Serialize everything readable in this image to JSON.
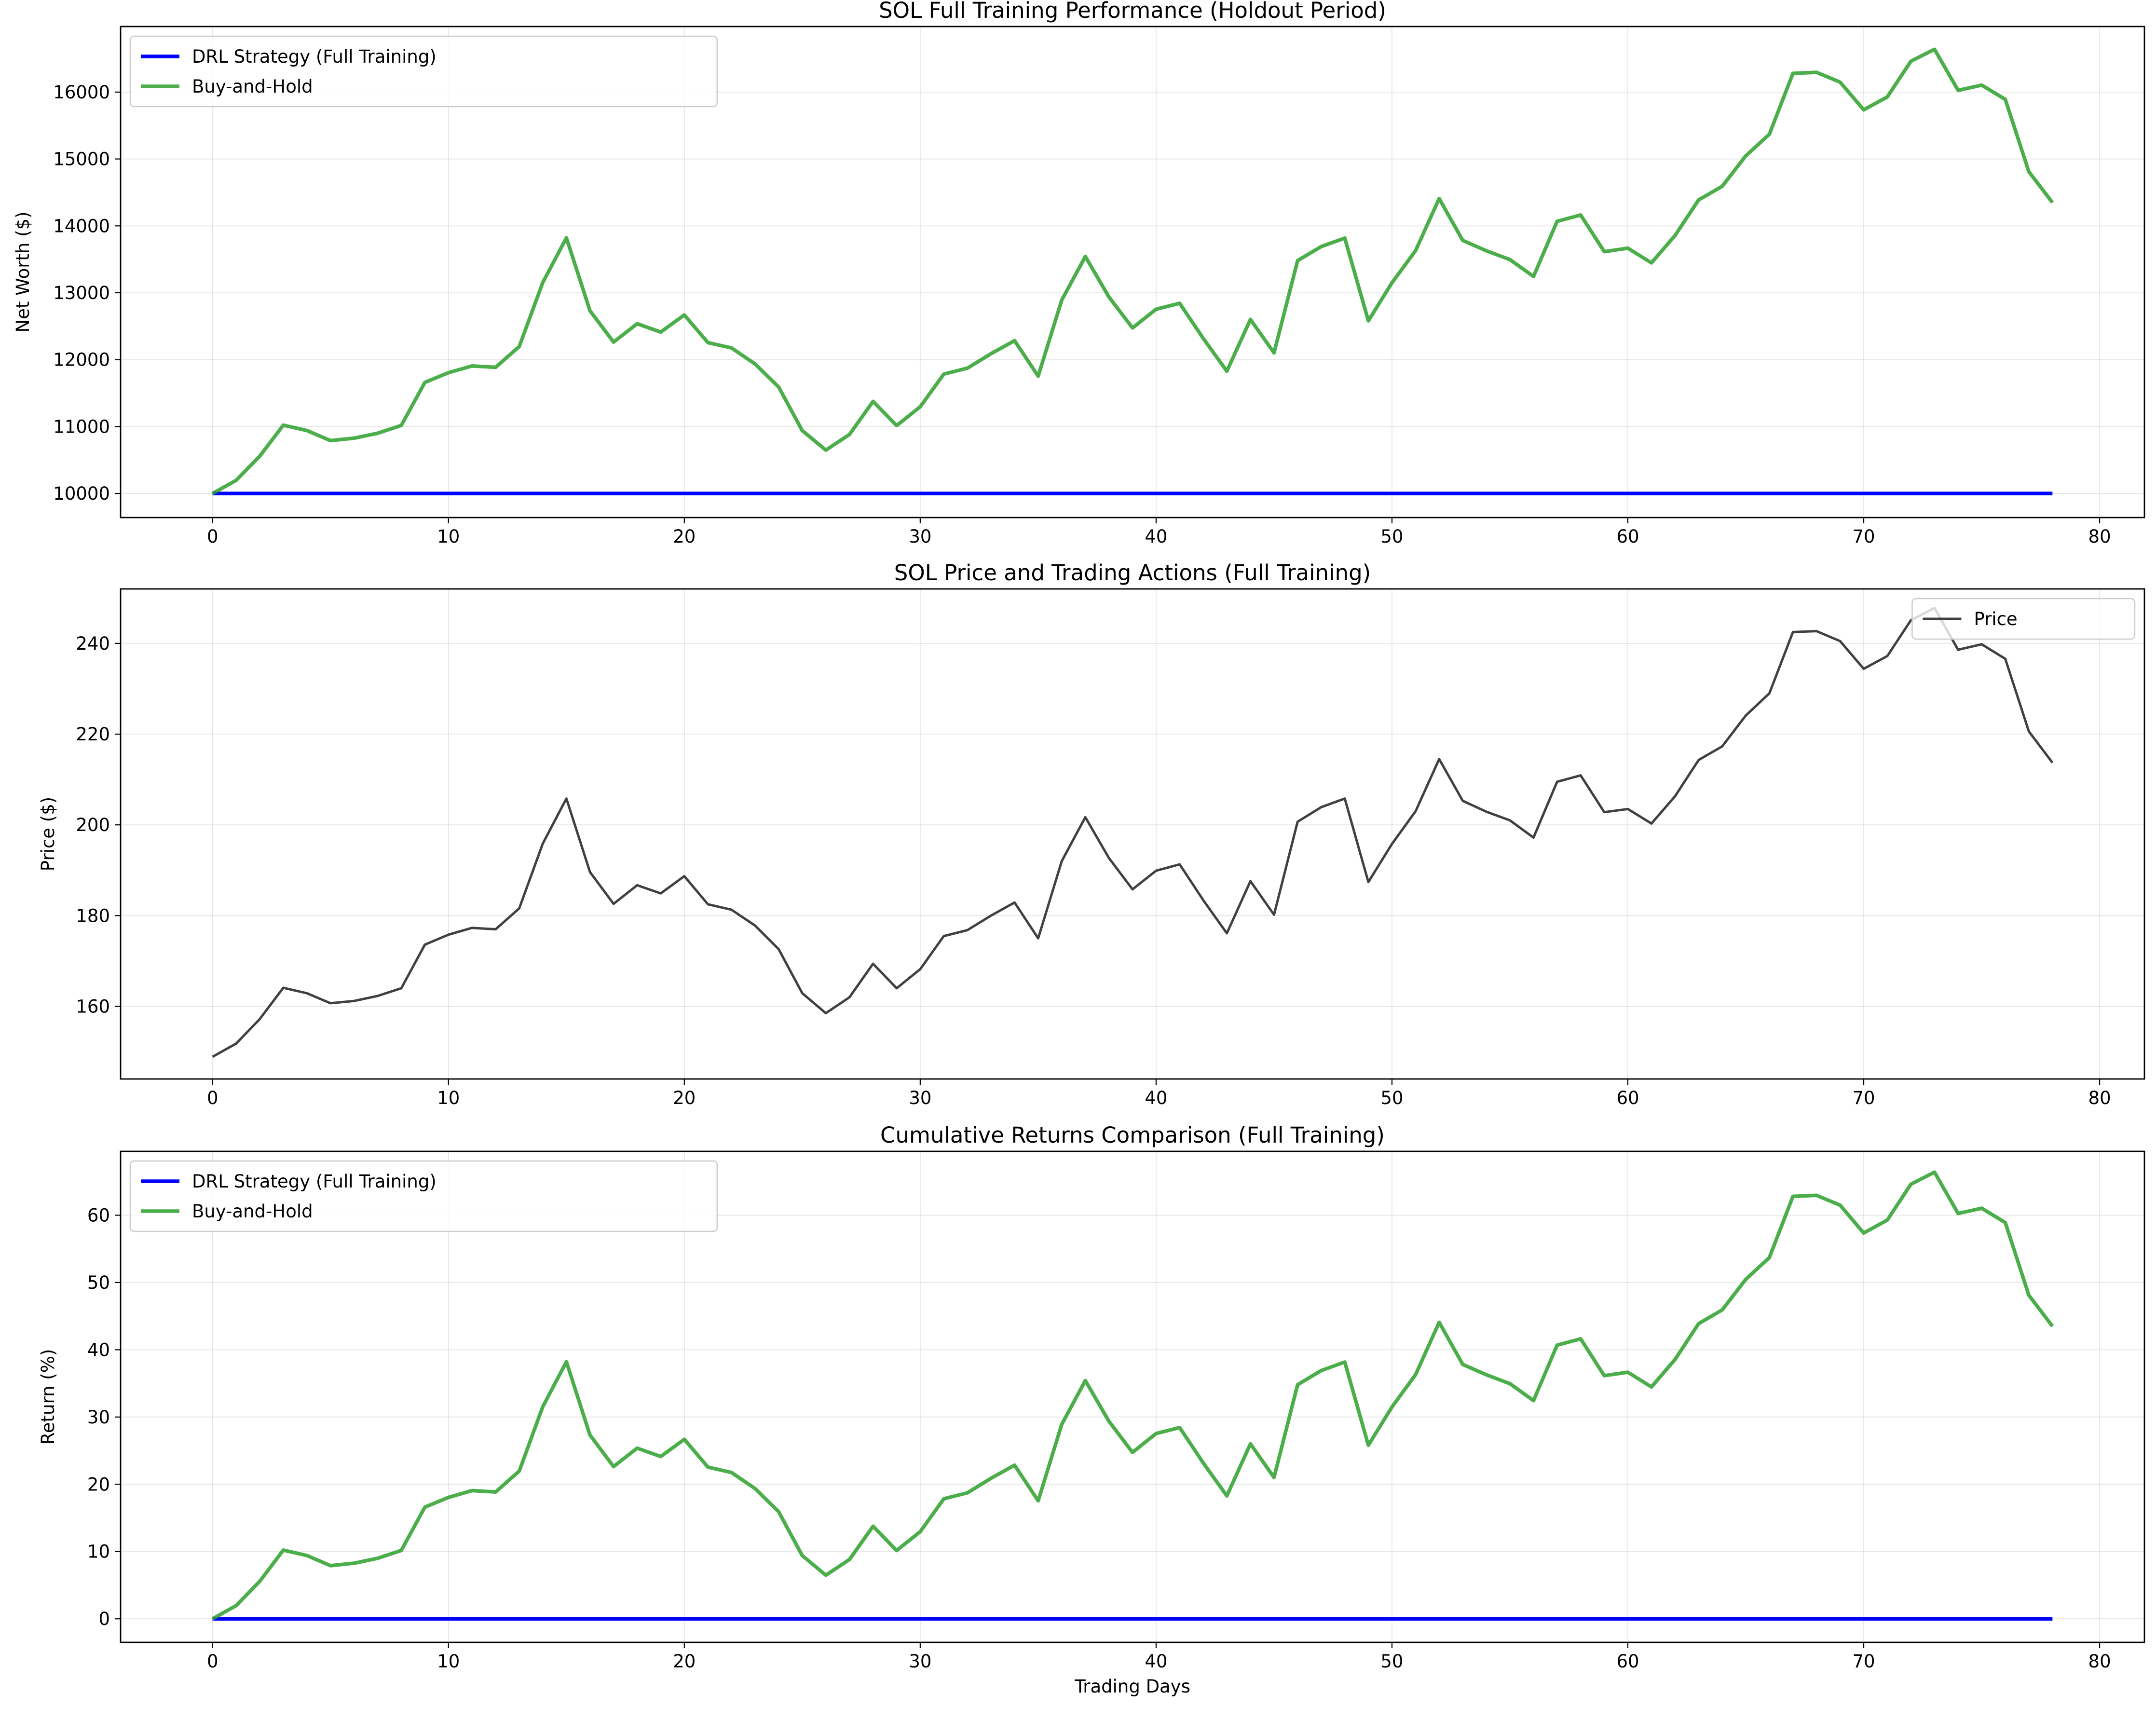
{
  "chart_data": [
    {
      "type": "line",
      "title": "SOL Full Training Performance (Holdout Period)",
      "xlabel": "",
      "ylabel": "Net Worth ($)",
      "xlim": [
        -3.9,
        81.9
      ],
      "ylim": [
        9640,
        16980
      ],
      "xticks": [
        0,
        10,
        20,
        30,
        40,
        50,
        60,
        70,
        80
      ],
      "yticks": [
        10000,
        11000,
        12000,
        13000,
        14000,
        15000,
        16000
      ],
      "grid": true,
      "legend_position": "top-left",
      "series": [
        {
          "name": "DRL Strategy (Full Training)",
          "color": "#0000ff",
          "values": [
            10000,
            10000,
            10000,
            10000,
            10000,
            10000,
            10000,
            10000,
            10000,
            10000,
            10000,
            10000,
            10000,
            10000,
            10000,
            10000,
            10000,
            10000,
            10000,
            10000,
            10000,
            10000,
            10000,
            10000,
            10000,
            10000,
            10000,
            10000,
            10000,
            10000,
            10000,
            10000,
            10000,
            10000,
            10000,
            10000,
            10000,
            10000,
            10000,
            10000,
            10000,
            10000,
            10000,
            10000,
            10000,
            10000,
            10000,
            10000,
            10000,
            10000,
            10000,
            10000,
            10000,
            10000,
            10000,
            10000,
            10000,
            10000,
            10000,
            10000,
            10000,
            10000,
            10000,
            10000,
            10000,
            10000,
            10000,
            10000,
            10000,
            10000,
            10000,
            10000,
            10000,
            10000,
            10000,
            10000,
            10000,
            10000,
            10000
          ]
        },
        {
          "name": "Buy-and-Hold",
          "color": "#2ca02c",
          "values": [
            10000,
            10196,
            10557,
            11021,
            10941,
            10790,
            10827,
            10900,
            11017,
            11660,
            11805,
            11906,
            11886,
            12196,
            13155,
            13821,
            12731,
            12263,
            12537,
            12413,
            12668,
            12255,
            12175,
            11936,
            11591,
            10940,
            10648,
            10881,
            11376,
            11015,
            11296,
            11784,
            11873,
            12089,
            12284,
            11754,
            12891,
            13542,
            12937,
            12474,
            12754,
            12843,
            12317,
            11828,
            12601,
            12102,
            13480,
            13691,
            13817,
            12581,
            13149,
            13630,
            14408,
            13782,
            13628,
            13496,
            13244,
            14068,
            14162,
            13615,
            13666,
            13447,
            13856,
            14388,
            14592,
            15047,
            15371,
            16280,
            16295,
            16149,
            15735,
            15928,
            16461,
            16640,
            16026,
            16104,
            15891,
            14810,
            14349
          ]
        }
      ]
    },
    {
      "type": "line",
      "title": "SOL Price and Trading Actions (Full Training)",
      "xlabel": "",
      "ylabel": "Price ($)",
      "xlim": [
        -3.9,
        81.9
      ],
      "ylim": [
        144,
        252
      ],
      "xticks": [
        0,
        10,
        20,
        30,
        40,
        50,
        60,
        70,
        80
      ],
      "yticks": [
        160,
        180,
        200,
        220,
        240
      ],
      "grid": true,
      "legend_position": "top-right",
      "series": [
        {
          "name": "Price",
          "color": "#404040",
          "values": [
            148.9,
            151.8,
            157.2,
            164.1,
            162.9,
            160.7,
            161.2,
            162.3,
            164.0,
            173.6,
            175.8,
            177.3,
            177.0,
            181.6,
            195.9,
            205.8,
            189.6,
            182.6,
            186.7,
            184.9,
            188.7,
            182.5,
            181.3,
            177.8,
            172.6,
            162.9,
            158.5,
            162.0,
            169.4,
            164.0,
            168.2,
            175.5,
            176.8,
            180.0,
            182.9,
            175.0,
            192.0,
            201.7,
            192.7,
            185.8,
            189.9,
            191.3,
            183.4,
            176.1,
            187.6,
            180.2,
            200.7,
            203.9,
            205.8,
            187.4,
            195.8,
            203.0,
            214.5,
            205.3,
            202.9,
            201.0,
            197.2,
            209.5,
            210.9,
            202.8,
            203.5,
            200.3,
            206.3,
            214.3,
            217.3,
            224.1,
            229.0,
            242.5,
            242.7,
            240.5,
            234.4,
            237.2,
            245.1,
            247.8,
            238.6,
            239.8,
            236.6,
            220.6,
            213.7
          ]
        }
      ]
    },
    {
      "type": "line",
      "title": "Cumulative Returns Comparison (Full Training)",
      "xlabel": "Trading Days",
      "ylabel": "Return (%)",
      "xlim": [
        -3.9,
        81.9
      ],
      "ylim": [
        -3.5,
        69.5
      ],
      "xticks": [
        0,
        10,
        20,
        30,
        40,
        50,
        60,
        70,
        80
      ],
      "yticks": [
        0,
        10,
        20,
        30,
        40,
        50,
        60
      ],
      "grid": true,
      "legend_position": "top-left",
      "series": [
        {
          "name": "DRL Strategy (Full Training)",
          "color": "#0000ff",
          "values": [
            0,
            0,
            0,
            0,
            0,
            0,
            0,
            0,
            0,
            0,
            0,
            0,
            0,
            0,
            0,
            0,
            0,
            0,
            0,
            0,
            0,
            0,
            0,
            0,
            0,
            0,
            0,
            0,
            0,
            0,
            0,
            0,
            0,
            0,
            0,
            0,
            0,
            0,
            0,
            0,
            0,
            0,
            0,
            0,
            0,
            0,
            0,
            0,
            0,
            0,
            0,
            0,
            0,
            0,
            0,
            0,
            0,
            0,
            0,
            0,
            0,
            0,
            0,
            0,
            0,
            0,
            0,
            0,
            0,
            0,
            0,
            0,
            0,
            0,
            0,
            0,
            0,
            0,
            0
          ]
        },
        {
          "name": "Buy-and-Hold",
          "color": "#2ca02c",
          "values": [
            0,
            1.96,
            5.57,
            10.21,
            9.41,
            7.9,
            8.27,
            9.0,
            10.17,
            16.6,
            18.05,
            19.06,
            18.86,
            21.96,
            31.55,
            38.21,
            27.31,
            22.63,
            25.37,
            24.13,
            26.68,
            22.55,
            21.75,
            19.36,
            15.91,
            9.4,
            6.48,
            8.81,
            13.76,
            10.15,
            12.96,
            17.84,
            18.73,
            20.89,
            22.84,
            17.54,
            28.91,
            35.42,
            29.37,
            24.74,
            27.54,
            28.43,
            23.17,
            18.28,
            26.01,
            21.02,
            34.8,
            36.91,
            38.17,
            25.81,
            31.49,
            36.3,
            44.08,
            37.82,
            36.28,
            34.96,
            32.44,
            40.68,
            41.62,
            36.15,
            36.66,
            34.47,
            38.56,
            43.88,
            45.92,
            50.47,
            53.71,
            62.8,
            62.95,
            61.49,
            57.35,
            59.28,
            64.61,
            66.4,
            60.26,
            61.04,
            58.91,
            48.1,
            43.49
          ]
        }
      ]
    }
  ]
}
